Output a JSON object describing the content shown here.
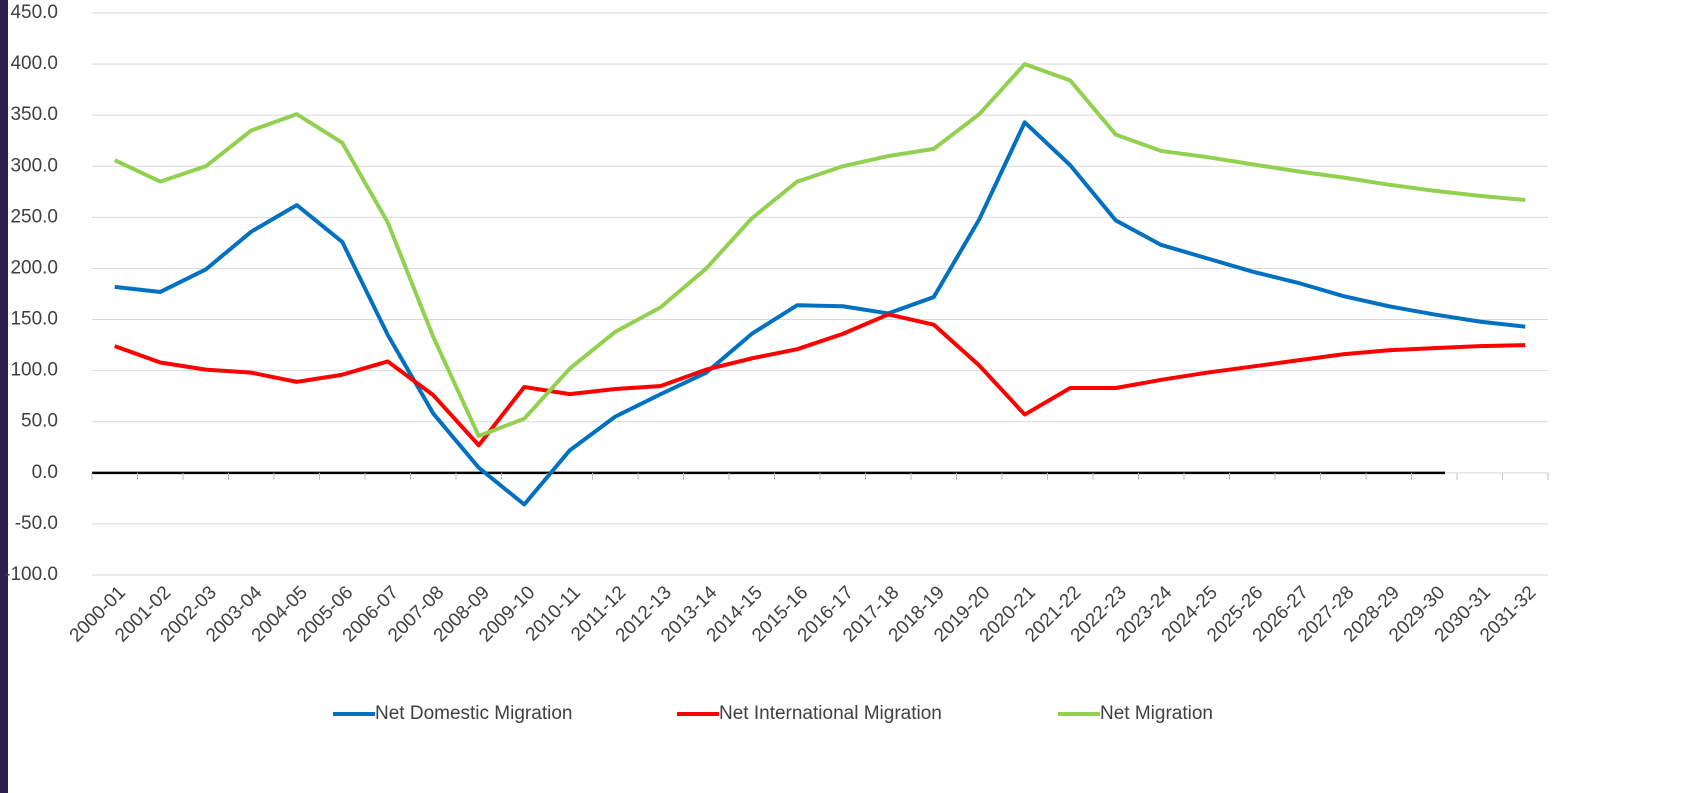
{
  "chart_data": {
    "type": "line",
    "categories": [
      "2000-01",
      "2001-02",
      "2002-03",
      "2003-04",
      "2004-05",
      "2005-06",
      "2006-07",
      "2007-08",
      "2008-09",
      "2009-10",
      "2010-11",
      "2011-12",
      "2012-13",
      "2013-14",
      "2014-15",
      "2015-16",
      "2016-17",
      "2017-18",
      "2018-19",
      "2019-20",
      "2020-21",
      "2021-22",
      "2022-23",
      "2023-24",
      "2024-25",
      "2025-26",
      "2026-27",
      "2027-28",
      "2028-29",
      "2029-30",
      "2030-31",
      "2031-32"
    ],
    "series": [
      {
        "name": "Net Domestic Migration",
        "color": "#0070c0",
        "values": [
          182,
          177,
          199,
          236,
          262,
          226,
          135,
          58,
          5,
          -31,
          22,
          55,
          77,
          98,
          136,
          164,
          163,
          156,
          172,
          248,
          343,
          301,
          247,
          223,
          210,
          197,
          186,
          173,
          163,
          155,
          148,
          143
        ]
      },
      {
        "name": "Net International Migration",
        "color": "#ff0000",
        "values": [
          124,
          108,
          101,
          98,
          89,
          96,
          109,
          76,
          27,
          84,
          77,
          82,
          85,
          101,
          112,
          121,
          136,
          155,
          145,
          105,
          57,
          83,
          83,
          91,
          98,
          104,
          110,
          116,
          120,
          122,
          124,
          125
        ]
      },
      {
        "name": "Net Migration",
        "color": "#92d050",
        "values": [
          306,
          285,
          300,
          335,
          351,
          323,
          245,
          133,
          36,
          53,
          102,
          138,
          162,
          200,
          249,
          285,
          300,
          310,
          317,
          351,
          400,
          384,
          331,
          315,
          309,
          302,
          295,
          289,
          282,
          276,
          271,
          267
        ]
      }
    ],
    "ylim": [
      -100,
      450
    ],
    "yticks": [
      {
        "value": -100,
        "label": "-100.0"
      },
      {
        "value": -50,
        "label": "-50.0"
      },
      {
        "value": 0,
        "label": "0.0"
      },
      {
        "value": 50,
        "label": "50.0"
      },
      {
        "value": 100,
        "label": "100.0"
      },
      {
        "value": 150,
        "label": "150.0"
      },
      {
        "value": 200,
        "label": "200.0"
      },
      {
        "value": 250,
        "label": "250.0"
      },
      {
        "value": 300,
        "label": "300.0"
      },
      {
        "value": 350,
        "label": "350.0"
      },
      {
        "value": 400,
        "label": "400.0"
      },
      {
        "value": 450,
        "label": "450.0"
      }
    ],
    "grid": true,
    "legend": "bottom"
  }
}
